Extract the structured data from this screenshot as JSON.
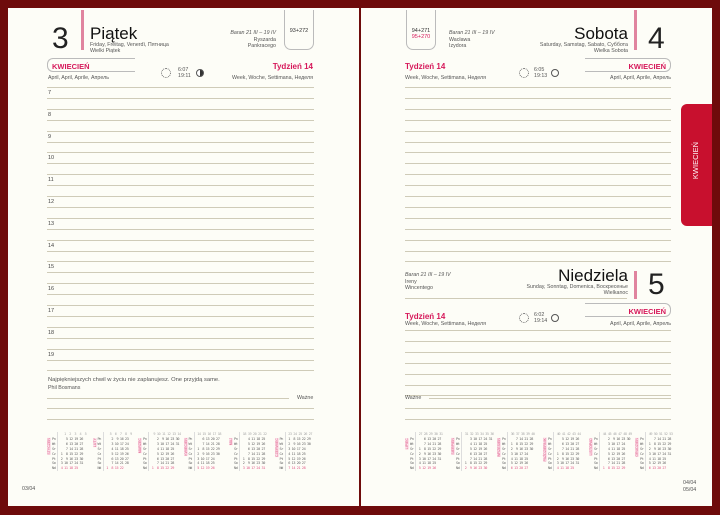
{
  "colors": {
    "accent": "#d6185a",
    "cover": "#6e0b0b",
    "tab": "#c8102e"
  },
  "tab_label": "KWIECIEŃ",
  "left": {
    "day_number": "3",
    "day_name": "Piątek",
    "day_translations": "Friday, Freitag, Venerdì, Пятница",
    "holiday": "Wielki Piątek",
    "zodiac": "Baran 21 III – 19 IV",
    "namedays": [
      "Ryszarda",
      "Pankracego"
    ],
    "day_count": "93+272",
    "month": "KWIECIEŃ",
    "month_translations": "April, April, Aprile, Апрель",
    "sunrise": "6:07",
    "sunset": "19:11",
    "sun_icon": "sun-icon",
    "moon_icon": "moon-last-quarter-icon",
    "week": "Tydzień 14",
    "week_translations": "Week, Woche, Settimana, Неделя",
    "hours": [
      "7",
      "8",
      "9",
      "10",
      "11",
      "12",
      "13",
      "14",
      "15",
      "16",
      "17",
      "18",
      "19"
    ],
    "quote": "Najpiękniejszych chwil w życiu nie zaplanujesz. One przyjdą same.",
    "quote_author": "Phil Bosmans",
    "important": "Ważne",
    "page_number": "03/04"
  },
  "right": {
    "saturday": {
      "day_number": "4",
      "day_name": "Sobota",
      "day_translations": "Saturday, Samstag, Sabato, Суббота",
      "holiday": "Wielka Sobota",
      "zodiac": "Baran 21 III – 19 IV",
      "namedays": [
        "Wacława",
        "Izydora"
      ],
      "day_count": "94+271",
      "day_count_next": "95+270",
      "week": "Tydzień 14",
      "week_translations": "Week, Woche, Settimana, Неделя",
      "sunrise": "6:05",
      "sunset": "19:13",
      "month": "KWIECIEŃ",
      "month_translations": "April, April, Aprile, Апрель"
    },
    "sunday": {
      "day_number": "5",
      "day_name": "Niedziela",
      "day_translations": "Sunday, Sonntag, Domenica, Воскресенье",
      "holiday": "Wielkanoc",
      "zodiac": "Baran 21 III – 19 IV",
      "namedays": [
        "Ireny",
        "Wincentego"
      ],
      "week": "Tydzień 14",
      "week_translations": "Week, Woche, Settimana, Неделя",
      "sunrise": "6:02",
      "sunset": "19:14",
      "month": "KWIECIEŃ",
      "month_translations": "April, April, Aprile, Апрель"
    },
    "important": "Ważne",
    "page_number": "04/04",
    "page_number_next": "05/04"
  },
  "weekdays": "Pn\nWt\nŚr\nCz\nPt\nSo\nNd",
  "calendars": [
    {
      "month": "STYCZEŃ",
      "weeks": "   1  2  3  4  5",
      "rows": [
        "    5 12 19 26",
        "    6 13 20 27",
        "    7 14 21 28",
        " 1  8 15 22 29",
        " 2  9 16 23 30",
        " 3 10 17 24 31",
        " 4 11 18 25"
      ]
    },
    {
      "month": "LUTY",
      "weeks": "   5  6  7  8  9",
      "rows": [
        "    2  9 16 23",
        "    3 10 17 24",
        "    4 11 18 25",
        "    5 12 19 26",
        "    6 13 20 27",
        "    7 14 21 28",
        " 1  8 15 22"
      ]
    },
    {
      "month": "MARZEC",
      "weeks": "  9 10 11 12 13 14",
      "rows": [
        "    2  9 16 23 30",
        "    3 10 17 24 31",
        "    4 11 18 25",
        "    5 12 19 26",
        "    6 13 20 27",
        "    7 14 21 28",
        " 1  8 15 22 29"
      ]
    },
    {
      "month": "KWIECIEŃ",
      "weeks": " 14 15 16 17 18",
      "rows": [
        "    6 13 20 27",
        "    7 14 21 28",
        " 1  8 15 22 29",
        " 2  9 16 23 30",
        " 3 10 17 24",
        " 4 11 18 25",
        " 5 12 19 26"
      ]
    },
    {
      "month": "MAJ",
      "weeks": " 18 19 20 21 22",
      "rows": [
        "    4 11 18 25",
        "    5 12 19 26",
        "    6 13 20 27",
        "    7 14 21 28",
        " 1  8 15 22 29",
        " 2  9 16 23 30",
        " 3 10 17 24 31"
      ]
    },
    {
      "month": "CZERWIEC",
      "weeks": " 23 24 25 26 27",
      "rows": [
        " 1  8 15 22 29",
        " 2  9 16 23 30",
        " 3 10 17 24",
        " 4 11 18 25",
        " 5 12 19 26",
        " 6 13 20 27",
        " 7 14 21 28"
      ]
    },
    {
      "month": "LIPIEC",
      "weeks": " 27 28 29 30 31",
      "rows": [
        "    6 13 20 27",
        "    7 14 21 28",
        " 1  8 15 22 29",
        " 2  9 16 23 30",
        " 3 10 17 24 31",
        " 4 11 18 25",
        " 5 12 19 26"
      ]
    },
    {
      "month": "SIERPIEŃ",
      "weeks": " 31 32 33 34 35 36",
      "rows": [
        "    3 10 17 24 31",
        "    4 11 18 25",
        "    5 12 19 26",
        "    6 13 20 27",
        "    7 14 21 28",
        " 1  8 15 22 29",
        " 2  9 16 23 30"
      ]
    },
    {
      "month": "WRZESIEŃ",
      "weeks": " 36 37 38 39 40",
      "rows": [
        "    7 14 21 28",
        " 1  8 15 22 29",
        " 2  9 16 23 30",
        " 3 10 17 24",
        " 4 11 18 25",
        " 5 12 19 26",
        " 6 13 20 27"
      ]
    },
    {
      "month": "PAŹDZIERNIK",
      "weeks": " 40 41 42 43 44",
      "rows": [
        "    5 12 19 26",
        "    6 13 20 27",
        "    7 14 21 28",
        " 1  8 15 22 29",
        " 2  9 16 23 30",
        " 3 10 17 24 31",
        " 4 11 18 25"
      ]
    },
    {
      "month": "LISTOPAD",
      "weeks": " 44 45 46 47 48 49",
      "rows": [
        "    2  9 16 23 30",
        "    3 10 17 24",
        "    4 11 18 25",
        "    5 12 19 26",
        "    6 13 20 27",
        "    7 14 21 28",
        " 1  8 15 22 29"
      ]
    },
    {
      "month": "GRUDZIEŃ",
      "weeks": " 49 50 51 52 53",
      "rows": [
        "    7 14 21 28",
        " 1  8 15 22 29",
        " 2  9 16 23 30",
        " 3 10 17 24 31",
        " 4 11 18 25",
        " 5 12 19 26",
        " 6 13 20 27"
      ]
    }
  ]
}
